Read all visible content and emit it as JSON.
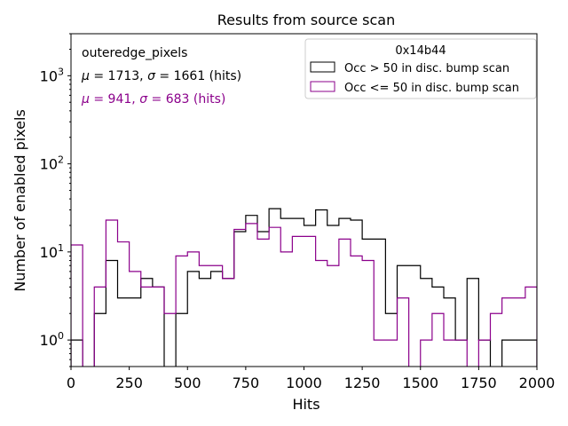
{
  "chart_data": {
    "type": "histogram",
    "title": "Results from source scan",
    "xlabel": "Hits",
    "ylabel": "Number of enabled pixels",
    "xlim": [
      0,
      2000
    ],
    "ylim": [
      0.5,
      3000
    ],
    "yscale": "log",
    "bin_width": 50,
    "x_ticks": [
      0,
      250,
      500,
      750,
      1000,
      1250,
      1500,
      1750,
      2000
    ],
    "x_tick_labels": [
      "0",
      "250",
      "500",
      "750",
      "1000",
      "1250",
      "1500",
      "1750",
      "2000"
    ],
    "y_ticks": [
      1,
      10,
      100,
      1000
    ],
    "y_tick_labels": [
      {
        "base": "10",
        "exp": "0"
      },
      {
        "base": "10",
        "exp": "1"
      },
      {
        "base": "10",
        "exp": "2"
      },
      {
        "base": "10",
        "exp": "3"
      }
    ],
    "legend": {
      "title": "0x14b44",
      "position": "top-right",
      "entries": [
        "Occ > 50 in disc. bump scan",
        "Occ <= 50 in disc. bump scan"
      ]
    },
    "annotations": {
      "name": "outeredge_pixels",
      "stats": [
        {
          "mu": "1713",
          "sigma": "1661",
          "unit": "(hits)",
          "color": "#000000"
        },
        {
          "mu": "941",
          "sigma": "683",
          "unit": "(hits)",
          "color": "#8b008b"
        }
      ]
    },
    "series": [
      {
        "name": "Occ > 50 in disc. bump scan",
        "color": "#000000",
        "edges_start": 0,
        "values": [
          1,
          0,
          2,
          8,
          3,
          3,
          5,
          4,
          0,
          2,
          6,
          5,
          6,
          5,
          17,
          26,
          17,
          31,
          24,
          24,
          20,
          30,
          20,
          24,
          23,
          14,
          14,
          2,
          7,
          7,
          5,
          4,
          3,
          1,
          5,
          1,
          0,
          1,
          1,
          1
        ]
      },
      {
        "name": "Occ <= 50 in disc. bump scan",
        "color": "#8b008b",
        "edges_start": 0,
        "values": [
          12,
          0,
          4,
          23,
          13,
          6,
          4,
          4,
          2,
          9,
          10,
          7,
          7,
          5,
          18,
          21,
          14,
          19,
          10,
          15,
          15,
          8,
          7,
          14,
          9,
          8,
          1,
          1,
          3,
          0,
          1,
          2,
          1,
          1,
          0,
          1,
          2,
          3,
          3,
          4
        ]
      }
    ]
  }
}
